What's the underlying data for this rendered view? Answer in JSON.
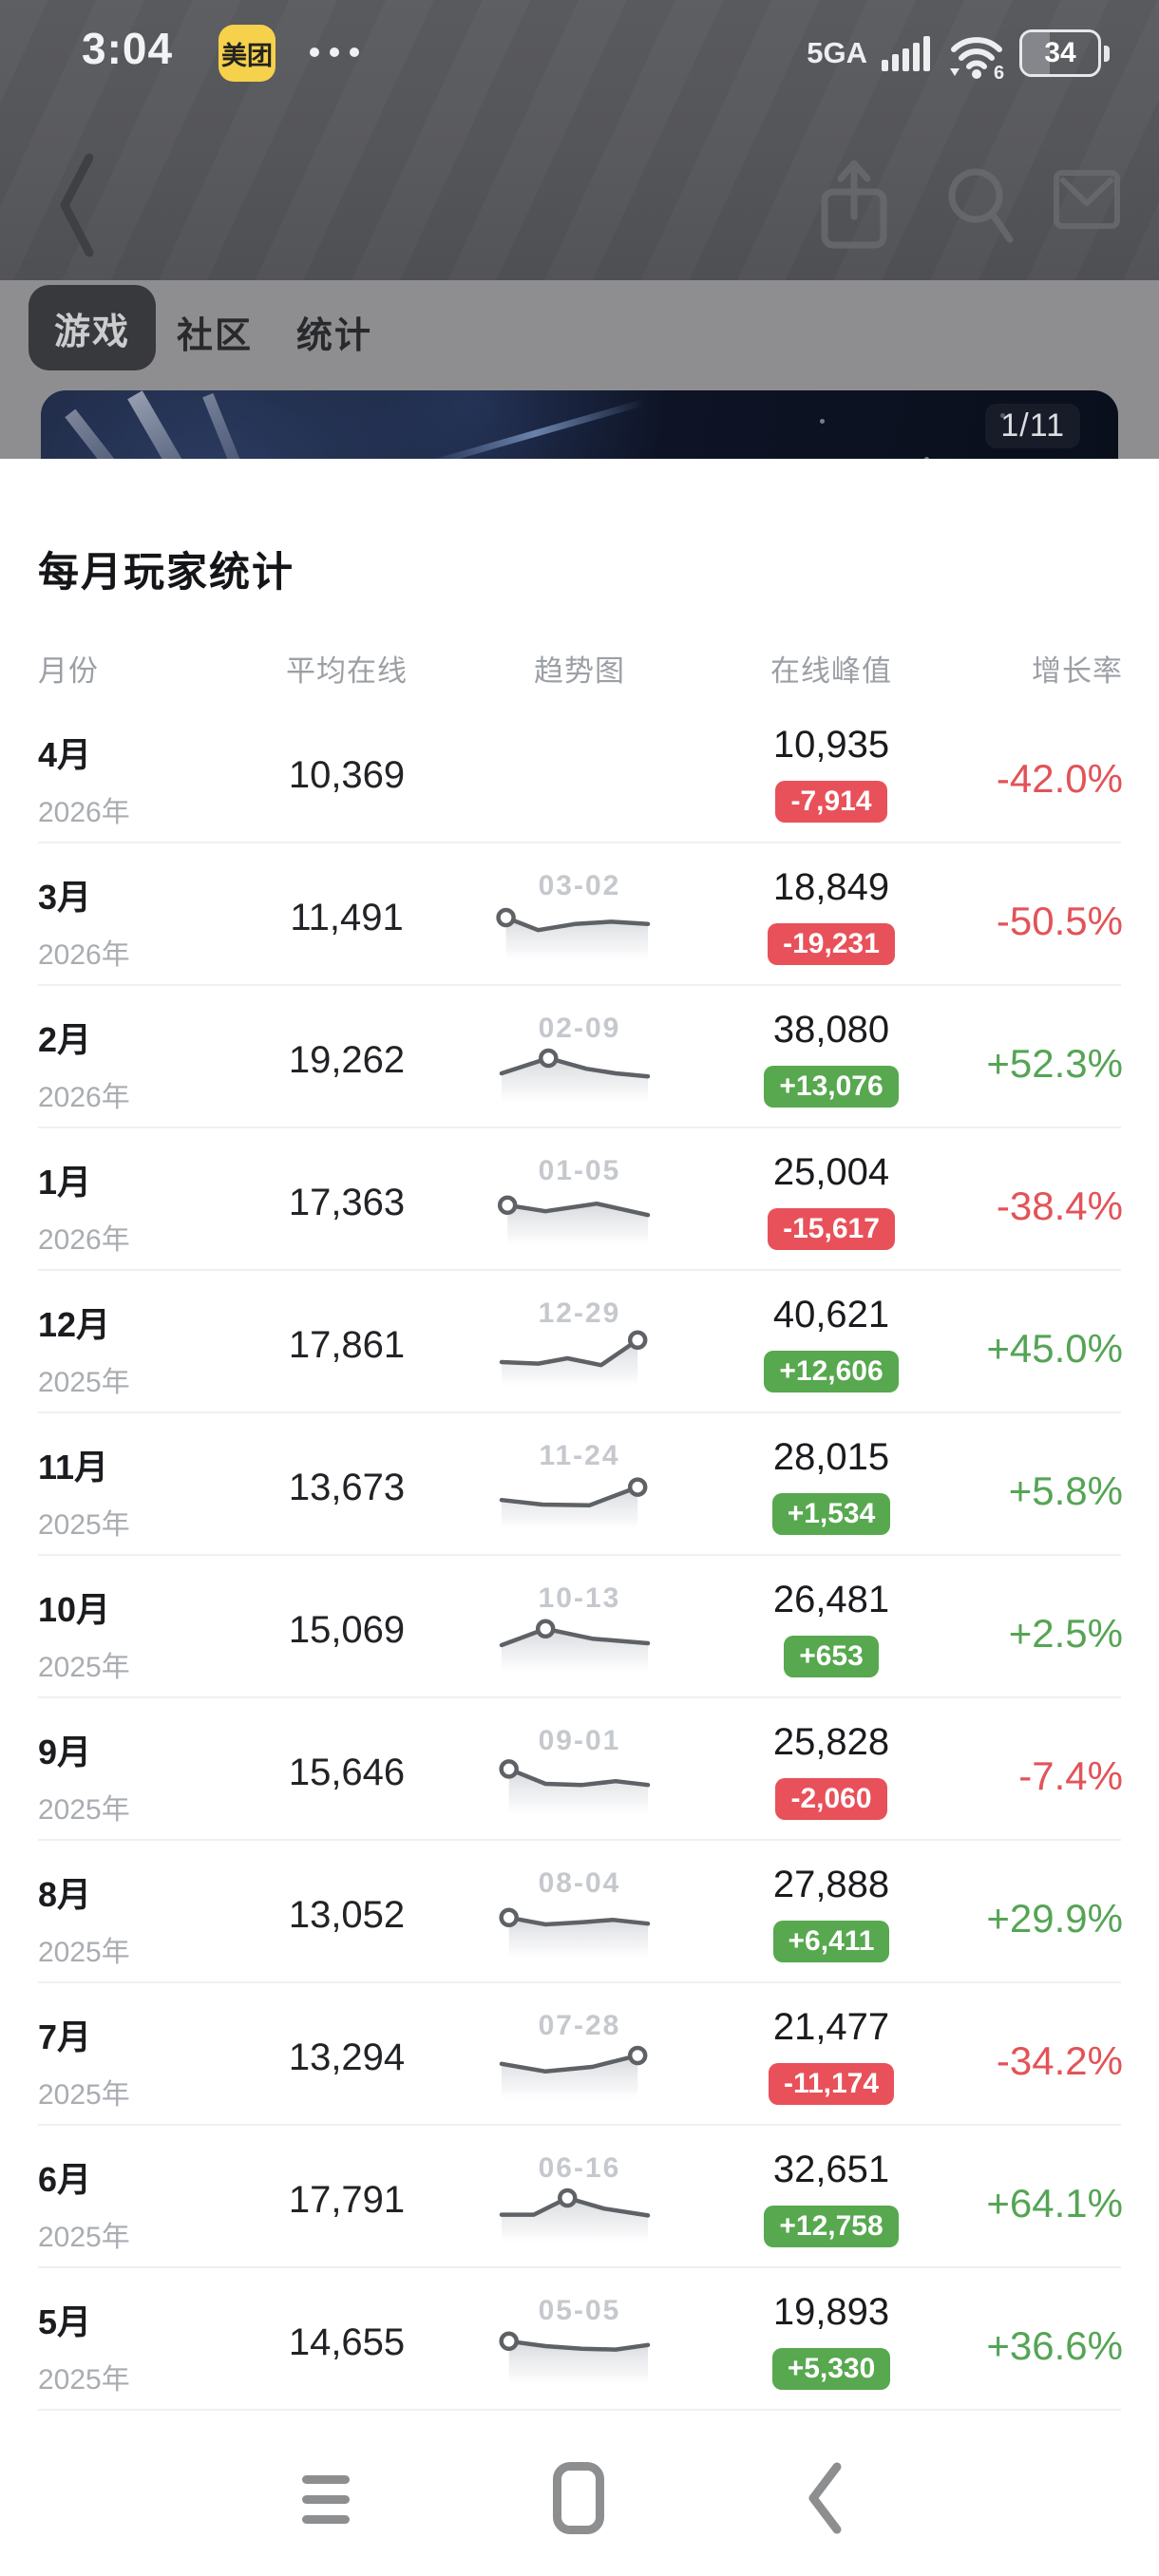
{
  "status_bar": {
    "time": "3:04",
    "app_badge": "美团",
    "network": "5GA",
    "wifi_generation": "6",
    "battery_percent": "34"
  },
  "nav_icons": [
    "back-chevron",
    "share",
    "search",
    "mail"
  ],
  "tabs": [
    {
      "label": "游戏",
      "selected": true
    },
    {
      "label": "社区",
      "selected": false
    },
    {
      "label": "统计",
      "selected": false
    }
  ],
  "banner": {
    "counter": "1/11"
  },
  "sheet": {
    "title": "每月玩家统计",
    "columns": [
      "月份",
      "平均在线",
      "趋势图",
      "在线峰值",
      "增长率"
    ],
    "rows": [
      {
        "month": "4月",
        "year": "2026年",
        "avg": "10,369",
        "trend": null,
        "peak": "10,935",
        "delta": "-7,914",
        "dir": "down",
        "rate": "-42.0%"
      },
      {
        "month": "3月",
        "year": "2026年",
        "avg": "11,491",
        "trend": {
          "label": "03-02",
          "marker": 0,
          "points": [
            [
              3,
              25
            ],
            [
              25,
              58
            ],
            [
              50,
              42
            ],
            [
              75,
              36
            ],
            [
              100,
              42
            ]
          ]
        },
        "peak": "18,849",
        "delta": "-19,231",
        "dir": "down",
        "rate": "-50.5%"
      },
      {
        "month": "2月",
        "year": "2026年",
        "avg": "19,262",
        "trend": {
          "label": "02-09",
          "marker": 1,
          "points": [
            [
              0,
              60
            ],
            [
              32,
              20
            ],
            [
              58,
              48
            ],
            [
              78,
              60
            ],
            [
              100,
              68
            ]
          ]
        },
        "peak": "38,080",
        "delta": "+13,076",
        "dir": "up",
        "rate": "+52.3%"
      },
      {
        "month": "1月",
        "year": "2026年",
        "avg": "17,363",
        "trend": {
          "label": "01-05",
          "marker": 0,
          "points": [
            [
              4,
              32
            ],
            [
              30,
              48
            ],
            [
              65,
              28
            ],
            [
              100,
              58
            ]
          ]
        },
        "peak": "25,004",
        "delta": "-15,617",
        "dir": "down",
        "rate": "-38.4%"
      },
      {
        "month": "12月",
        "year": "2025年",
        "avg": "17,861",
        "trend": {
          "label": "12-29",
          "marker": 4,
          "points": [
            [
              0,
              70
            ],
            [
              25,
              74
            ],
            [
              45,
              60
            ],
            [
              68,
              78
            ],
            [
              93,
              12
            ]
          ]
        },
        "peak": "40,621",
        "delta": "+12,606",
        "dir": "up",
        "rate": "+45.0%"
      },
      {
        "month": "11月",
        "year": "2025年",
        "avg": "13,673",
        "trend": {
          "label": "11-24",
          "marker": 3,
          "points": [
            [
              0,
              58
            ],
            [
              28,
              70
            ],
            [
              60,
              72
            ],
            [
              93,
              24
            ]
          ]
        },
        "peak": "28,015",
        "delta": "+1,534",
        "dir": "up",
        "rate": "+5.8%"
      },
      {
        "month": "10月",
        "year": "2025年",
        "avg": "15,069",
        "trend": {
          "label": "10-13",
          "marker": 1,
          "points": [
            [
              0,
              65
            ],
            [
              30,
              22
            ],
            [
              62,
              48
            ],
            [
              100,
              60
            ]
          ]
        },
        "peak": "26,481",
        "delta": "+653",
        "dir": "up",
        "rate": "+2.5%"
      },
      {
        "month": "9月",
        "year": "2025年",
        "avg": "15,646",
        "trend": {
          "label": "09-01",
          "marker": 0,
          "points": [
            [
              5,
              16
            ],
            [
              30,
              55
            ],
            [
              55,
              58
            ],
            [
              78,
              48
            ],
            [
              100,
              58
            ]
          ]
        },
        "peak": "25,828",
        "delta": "-2,060",
        "dir": "down",
        "rate": "-7.4%"
      },
      {
        "month": "8月",
        "year": "2025年",
        "avg": "13,052",
        "trend": {
          "label": "08-04",
          "marker": 0,
          "points": [
            [
              5,
              32
            ],
            [
              30,
              50
            ],
            [
              56,
              44
            ],
            [
              76,
              38
            ],
            [
              100,
              48
            ]
          ]
        },
        "peak": "27,888",
        "delta": "+6,411",
        "dir": "up",
        "rate": "+29.9%"
      },
      {
        "month": "7月",
        "year": "2025年",
        "avg": "13,294",
        "trend": {
          "label": "07-28",
          "marker": 3,
          "points": [
            [
              0,
              42
            ],
            [
              30,
              62
            ],
            [
              62,
              50
            ],
            [
              93,
              20
            ]
          ]
        },
        "peak": "21,477",
        "delta": "-11,174",
        "dir": "down",
        "rate": "-34.2%"
      },
      {
        "month": "6月",
        "year": "2025年",
        "avg": "17,791",
        "trend": {
          "label": "06-16",
          "marker": 2,
          "points": [
            [
              0,
              64
            ],
            [
              22,
              64
            ],
            [
              45,
              20
            ],
            [
              70,
              48
            ],
            [
              100,
              66
            ]
          ]
        },
        "peak": "32,651",
        "delta": "+12,758",
        "dir": "up",
        "rate": "+64.1%"
      },
      {
        "month": "5月",
        "year": "2025年",
        "avg": "14,655",
        "trend": {
          "label": "05-05",
          "marker": 0,
          "points": [
            [
              5,
              22
            ],
            [
              30,
              35
            ],
            [
              55,
              42
            ],
            [
              78,
              44
            ],
            [
              100,
              32
            ]
          ]
        },
        "peak": "19,893",
        "delta": "+5,330",
        "dir": "up",
        "rate": "+36.6%"
      }
    ]
  },
  "bottom_nav_icons": [
    "menu",
    "home",
    "back"
  ],
  "colors": {
    "up_badge": "#57a84f",
    "down_badge": "#e8515a",
    "up_text": "#55a455",
    "down_text": "#e25358",
    "spark_line": "#5e6165",
    "accent_badge_yellow": "#f6d14b"
  }
}
